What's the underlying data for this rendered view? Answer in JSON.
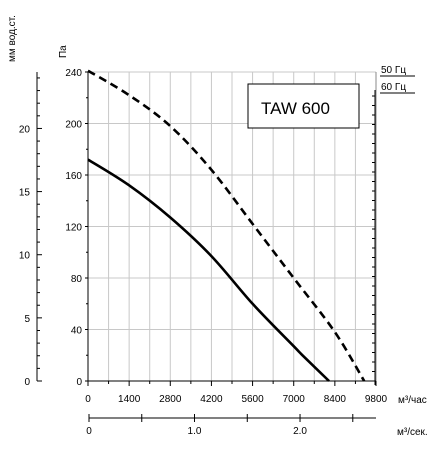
{
  "chart_data": {
    "type": "line",
    "model_label": "TAW 600",
    "units": {
      "mm": "мм вод.ст.",
      "pa": "Па",
      "flow_h": "м³/час",
      "flow_s": "м³/сек."
    },
    "pa_axis": {
      "ylim": [
        0,
        240
      ],
      "ticks": [
        "0",
        "40",
        "80",
        "120",
        "160",
        "200",
        "240"
      ]
    },
    "mm_axis": {
      "ylim": [
        0,
        24.47
      ],
      "ticks": [
        "0",
        "5",
        "10",
        "15",
        "20"
      ]
    },
    "x_axis": {
      "xlim": [
        0,
        9800
      ],
      "ticks": [
        "0",
        "1400",
        "2800",
        "4200",
        "5600",
        "7000",
        "8400",
        "9800"
      ]
    },
    "sec_axis": {
      "xlim": [
        0,
        2.72
      ],
      "ticks": [
        "0",
        "1.0",
        "2.0"
      ]
    },
    "grid": true,
    "legend": [
      {
        "label": "50 Гц",
        "style": "solid"
      },
      {
        "label": "60 Гц",
        "style": "dashed"
      }
    ],
    "series": [
      {
        "style": "solid",
        "points": [
          [
            0,
            172
          ],
          [
            1400,
            152
          ],
          [
            2800,
            127
          ],
          [
            4200,
            97
          ],
          [
            5600,
            60
          ],
          [
            7000,
            27
          ],
          [
            7300,
            20
          ],
          [
            8200,
            0
          ]
        ]
      },
      {
        "style": "dashed",
        "points": [
          [
            0,
            241
          ],
          [
            1400,
            222
          ],
          [
            2800,
            198
          ],
          [
            4200,
            164
          ],
          [
            5600,
            122
          ],
          [
            7000,
            80
          ],
          [
            8400,
            38
          ],
          [
            9400,
            0
          ]
        ]
      }
    ]
  }
}
